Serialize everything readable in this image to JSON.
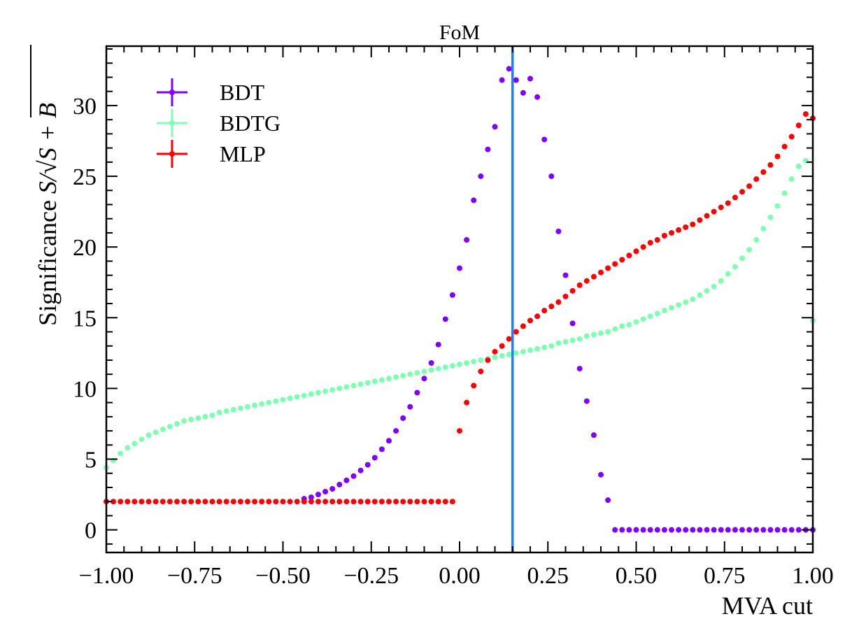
{
  "chart_data": {
    "type": "scatter",
    "title": "FoM",
    "xlabel": "MVA cut",
    "ylabel_prefix": "Significance ",
    "ylabel_math": "S/√S + B",
    "xlim": [
      -1.0,
      1.0
    ],
    "ylim": [
      -1.6,
      34.2
    ],
    "x_ticks": [
      -1.0,
      -0.75,
      -0.5,
      -0.25,
      0.0,
      0.25,
      0.5,
      0.75,
      1.0
    ],
    "x_tick_labels": [
      "−1.00",
      "−0.75",
      "−0.50",
      "−0.25",
      "0.00",
      "0.25",
      "0.50",
      "0.75",
      "1.00"
    ],
    "y_ticks": [
      0,
      5,
      10,
      15,
      20,
      25,
      30
    ],
    "y_tick_labels": [
      "0",
      "5",
      "10",
      "15",
      "20",
      "25",
      "30"
    ],
    "grid": false,
    "legend_position": "top-left",
    "vline": {
      "x": 0.15,
      "color": "#1f7fff"
    },
    "series": [
      {
        "name": "BDT",
        "color": "#8000ff",
        "x": [
          -0.44,
          -0.42,
          -0.4,
          -0.38,
          -0.36,
          -0.34,
          -0.32,
          -0.3,
          -0.28,
          -0.26,
          -0.24,
          -0.22,
          -0.2,
          -0.18,
          -0.16,
          -0.14,
          -0.12,
          -0.1,
          -0.08,
          -0.06,
          -0.04,
          -0.02,
          0.0,
          0.02,
          0.04,
          0.06,
          0.08,
          0.1,
          0.12,
          0.14,
          0.16,
          0.18,
          0.2,
          0.22,
          0.24,
          0.26,
          0.28,
          0.3,
          0.32,
          0.34,
          0.36,
          0.38,
          0.4,
          0.42,
          0.44,
          0.46,
          0.48,
          0.5,
          0.52,
          0.54,
          0.56,
          0.58,
          0.6,
          0.62,
          0.64,
          0.66,
          0.68,
          0.7,
          0.72,
          0.74,
          0.76,
          0.78,
          0.8,
          0.82,
          0.84,
          0.86,
          0.88,
          0.9,
          0.92,
          0.94,
          0.96,
          0.98,
          1.0
        ],
        "y": [
          2.2,
          2.3,
          2.5,
          2.7,
          2.9,
          3.2,
          3.5,
          3.8,
          4.2,
          4.6,
          5.1,
          5.7,
          6.3,
          7.0,
          7.9,
          8.7,
          9.7,
          10.7,
          11.8,
          13.1,
          14.9,
          16.6,
          18.5,
          20.5,
          23.3,
          25.0,
          26.9,
          28.5,
          31.8,
          32.6,
          31.8,
          30.9,
          31.9,
          30.6,
          27.6,
          25.0,
          21.1,
          18.0,
          14.6,
          11.4,
          9.1,
          6.7,
          3.9,
          2.1,
          0.0,
          0.0,
          0.0,
          0.0,
          0.0,
          0.0,
          0.0,
          0.0,
          0.0,
          0.0,
          0.0,
          0.0,
          0.0,
          0.0,
          0.0,
          0.0,
          0.0,
          0.0,
          0.0,
          0.0,
          0.0,
          0.0,
          0.0,
          0.0,
          0.0,
          0.0,
          0.0,
          0.0,
          0.0
        ]
      },
      {
        "name": "BDTG",
        "color": "#80ffb4",
        "x": [
          -1.0,
          -0.98,
          -0.96,
          -0.94,
          -0.92,
          -0.9,
          -0.88,
          -0.86,
          -0.84,
          -0.82,
          -0.8,
          -0.78,
          -0.76,
          -0.74,
          -0.72,
          -0.7,
          -0.68,
          -0.66,
          -0.64,
          -0.62,
          -0.6,
          -0.58,
          -0.56,
          -0.54,
          -0.52,
          -0.5,
          -0.48,
          -0.46,
          -0.44,
          -0.42,
          -0.4,
          -0.38,
          -0.36,
          -0.34,
          -0.32,
          -0.3,
          -0.28,
          -0.26,
          -0.24,
          -0.22,
          -0.2,
          -0.18,
          -0.16,
          -0.14,
          -0.12,
          -0.1,
          -0.08,
          -0.06,
          -0.04,
          -0.02,
          0.0,
          0.02,
          0.04,
          0.06,
          0.08,
          0.1,
          0.12,
          0.14,
          0.16,
          0.18,
          0.2,
          0.22,
          0.24,
          0.26,
          0.28,
          0.3,
          0.32,
          0.34,
          0.36,
          0.38,
          0.4,
          0.42,
          0.44,
          0.46,
          0.48,
          0.5,
          0.52,
          0.54,
          0.56,
          0.58,
          0.6,
          0.62,
          0.64,
          0.66,
          0.68,
          0.7,
          0.72,
          0.74,
          0.76,
          0.78,
          0.8,
          0.82,
          0.84,
          0.86,
          0.88,
          0.9,
          0.92,
          0.94,
          0.96,
          0.98,
          1.0
        ],
        "y": [
          4.4,
          4.9,
          5.4,
          5.8,
          6.1,
          6.4,
          6.7,
          6.9,
          7.1,
          7.3,
          7.5,
          7.7,
          7.8,
          7.9,
          8.0,
          8.1,
          8.3,
          8.4,
          8.5,
          8.6,
          8.7,
          8.8,
          8.9,
          9.0,
          9.1,
          9.2,
          9.3,
          9.4,
          9.5,
          9.6,
          9.7,
          9.8,
          9.9,
          10.0,
          10.1,
          10.2,
          10.3,
          10.4,
          10.5,
          10.6,
          10.7,
          10.8,
          10.9,
          11.0,
          11.1,
          11.2,
          11.3,
          11.4,
          11.5,
          11.6,
          11.7,
          11.8,
          11.9,
          12.0,
          12.1,
          12.2,
          12.3,
          12.4,
          12.5,
          12.6,
          12.7,
          12.8,
          12.9,
          13.0,
          13.2,
          13.3,
          13.4,
          13.5,
          13.7,
          13.8,
          13.9,
          14.0,
          14.2,
          14.4,
          14.5,
          14.7,
          14.9,
          15.1,
          15.3,
          15.5,
          15.7,
          15.9,
          16.1,
          16.3,
          16.6,
          16.9,
          17.2,
          17.6,
          18.1,
          18.6,
          19.2,
          19.8,
          20.5,
          21.3,
          22.1,
          22.9,
          23.8,
          24.8,
          25.7,
          26.1,
          14.8
        ]
      },
      {
        "name": "MLP",
        "color": "#ff0000",
        "x": [
          -1.0,
          -0.98,
          -0.96,
          -0.94,
          -0.92,
          -0.9,
          -0.88,
          -0.86,
          -0.84,
          -0.82,
          -0.8,
          -0.78,
          -0.76,
          -0.74,
          -0.72,
          -0.7,
          -0.68,
          -0.66,
          -0.64,
          -0.62,
          -0.6,
          -0.58,
          -0.56,
          -0.54,
          -0.52,
          -0.5,
          -0.48,
          -0.46,
          -0.44,
          -0.42,
          -0.4,
          -0.38,
          -0.36,
          -0.34,
          -0.32,
          -0.3,
          -0.28,
          -0.26,
          -0.24,
          -0.22,
          -0.2,
          -0.18,
          -0.16,
          -0.14,
          -0.12,
          -0.1,
          -0.08,
          -0.06,
          -0.04,
          -0.02,
          0.0,
          0.02,
          0.04,
          0.06,
          0.08,
          0.1,
          0.12,
          0.14,
          0.16,
          0.18,
          0.2,
          0.22,
          0.24,
          0.26,
          0.28,
          0.3,
          0.32,
          0.34,
          0.36,
          0.38,
          0.4,
          0.42,
          0.44,
          0.46,
          0.48,
          0.5,
          0.52,
          0.54,
          0.56,
          0.58,
          0.6,
          0.62,
          0.64,
          0.66,
          0.68,
          0.7,
          0.72,
          0.74,
          0.76,
          0.78,
          0.8,
          0.82,
          0.84,
          0.86,
          0.88,
          0.9,
          0.92,
          0.94,
          0.96,
          0.98,
          1.0
        ],
        "y": [
          2.0,
          2.0,
          2.0,
          2.0,
          2.0,
          2.0,
          2.0,
          2.0,
          2.0,
          2.0,
          2.0,
          2.0,
          2.0,
          2.0,
          2.0,
          2.0,
          2.0,
          2.0,
          2.0,
          2.0,
          2.0,
          2.0,
          2.0,
          2.0,
          2.0,
          2.0,
          2.0,
          2.0,
          2.0,
          2.0,
          2.0,
          2.0,
          2.0,
          2.0,
          2.0,
          2.0,
          2.0,
          2.0,
          2.0,
          2.0,
          2.0,
          2.0,
          2.0,
          2.0,
          2.0,
          2.0,
          2.0,
          2.0,
          2.0,
          2.0,
          7.0,
          9.0,
          10.2,
          11.2,
          12.0,
          12.6,
          13.0,
          13.5,
          14.0,
          14.4,
          14.8,
          15.1,
          15.5,
          15.8,
          16.1,
          16.5,
          16.9,
          17.3,
          17.6,
          17.9,
          18.2,
          18.5,
          18.8,
          19.1,
          19.4,
          19.7,
          20.0,
          20.3,
          20.5,
          20.8,
          21.0,
          21.2,
          21.4,
          21.6,
          21.9,
          22.2,
          22.5,
          22.8,
          23.1,
          23.5,
          23.9,
          24.3,
          24.8,
          25.3,
          25.8,
          26.4,
          27.1,
          27.8,
          28.6,
          29.4,
          29.1
        ]
      }
    ]
  }
}
